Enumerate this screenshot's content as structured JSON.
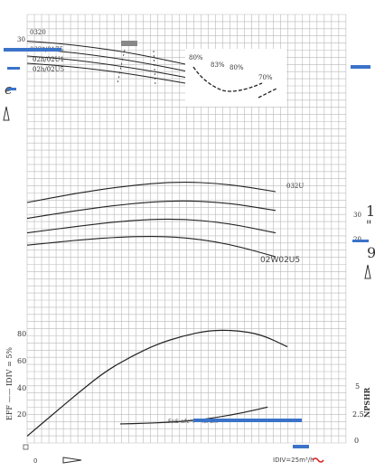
{
  "chart_data": {
    "type": "line",
    "head_panel": {
      "ylim_label": "30",
      "curves": [
        {
          "name": "0320",
          "x": [
            0,
            20,
            40,
            60,
            80,
            100
          ],
          "y": [
            28.9,
            28.4,
            27.6,
            26.6,
            25.3,
            23.8
          ]
        },
        {
          "name": "032*/0175",
          "x": [
            0,
            20,
            40,
            60,
            80,
            100
          ],
          "y": [
            27.2,
            26.7,
            25.9,
            24.9,
            23.7,
            22.3
          ]
        },
        {
          "name": "02h/02U1",
          "x": [
            0,
            20,
            40,
            60,
            80,
            100
          ],
          "y": [
            25.6,
            25.1,
            24.3,
            23.3,
            22.2,
            20.9
          ]
        },
        {
          "name": "02h/02U5",
          "x": [
            0,
            20,
            40,
            60,
            80,
            100
          ],
          "y": [
            24.0,
            23.5,
            22.8,
            21.9,
            20.8,
            19.6
          ]
        }
      ],
      "inset_labels": [
        "80%",
        "83%",
        "80%",
        "70%"
      ]
    },
    "power_panel": {
      "right_ticks": [
        "30",
        "20"
      ],
      "curves": [
        {
          "name": "032U",
          "x": [
            0,
            20,
            40,
            60,
            80,
            100
          ],
          "y": [
            24.5,
            25.8,
            26.8,
            27.4,
            27.1,
            26.0
          ]
        },
        {
          "name": "",
          "x": [
            0,
            20,
            40,
            60,
            80,
            100
          ],
          "y": [
            22.3,
            23.4,
            24.3,
            24.8,
            24.5,
            23.4
          ]
        },
        {
          "name": "",
          "x": [
            0,
            20,
            40,
            60,
            80,
            100
          ],
          "y": [
            20.3,
            21.2,
            22.0,
            22.3,
            21.7,
            20.3
          ]
        },
        {
          "name": "02W02U5",
          "x": [
            0,
            20,
            40,
            60,
            80,
            100
          ],
          "y": [
            18.6,
            19.3,
            19.8,
            19.8,
            18.9,
            17.0
          ]
        }
      ]
    },
    "eff_panel": {
      "ylabel": "EFF —— IDIV = 5%",
      "yticks": [
        "80",
        "60",
        "40",
        "20"
      ],
      "right_label": "NPSHR",
      "right_ticks": [
        "5",
        "2.5",
        "0"
      ],
      "eff_curve": {
        "x": [
          0,
          10,
          20,
          30,
          40,
          50,
          60,
          70,
          80,
          90,
          100
        ],
        "y": [
          5,
          21,
          37,
          52,
          63,
          72,
          78,
          82,
          82,
          79,
          70
        ]
      },
      "npsh_curve": {
        "x": [
          35,
          45,
          55,
          65,
          75,
          85,
          95
        ],
        "y": [
          1.7,
          1.75,
          1.85,
          2.0,
          2.3,
          2.7,
          3.2
        ]
      },
      "note": "FnS afc*l··· NPSH"
    },
    "x_axis": {
      "zero_label": "0",
      "unit_label": "IDIV=25m³/h"
    }
  },
  "side_labels": {
    "left_e": "e",
    "right_top": "1",
    "right_mid": "\"",
    "right_bottom": "9"
  }
}
